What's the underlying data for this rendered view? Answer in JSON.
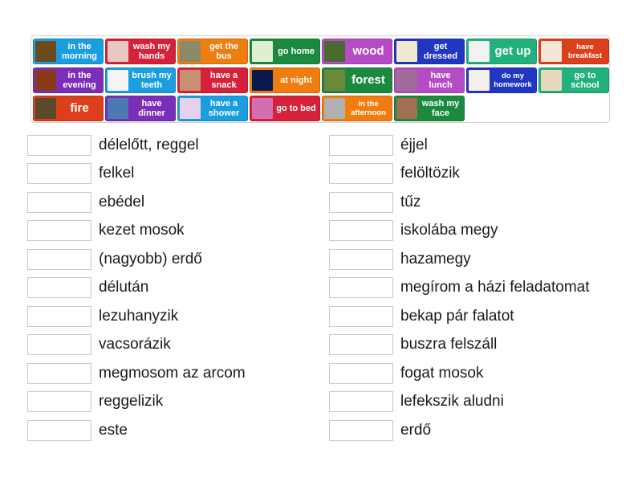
{
  "colors": {
    "blue": "#1b9ee0",
    "red": "#d6213b",
    "orange": "#ef7d10",
    "green": "#1c8a3e",
    "purple": "#7b2fb8",
    "magenta": "#b54cc6",
    "darkblue": "#2137c2",
    "teal": "#22b07c",
    "redorange": "#dc3f1b"
  },
  "tiles": [
    {
      "label": "in the morning",
      "color": "blue",
      "pic": "#6b4a1e"
    },
    {
      "label": "wash my hands",
      "color": "red",
      "pic": "#e8c8c0"
    },
    {
      "label": "get the bus",
      "color": "orange",
      "pic": "#8a8a6a"
    },
    {
      "label": "go home",
      "color": "green",
      "pic": "#dff0d0"
    },
    {
      "label": "wood",
      "color": "magenta",
      "pic": "#4a6a30"
    },
    {
      "label": "get dressed",
      "color": "darkblue",
      "pic": "#f0e8d0"
    },
    {
      "label": "get up",
      "color": "teal",
      "pic": "#f2f2f2"
    },
    {
      "label": "have breakfast",
      "color": "redorange",
      "pic": "#f4e6d8"
    },
    {
      "label": "in the evening",
      "color": "purple",
      "pic": "#8a3a1a"
    },
    {
      "label": "brush my teeth",
      "color": "blue",
      "pic": "#f4f4f4"
    },
    {
      "label": "have a snack",
      "color": "red",
      "pic": "#c89070"
    },
    {
      "label": "at night",
      "color": "orange",
      "pic": "#0a1a50"
    },
    {
      "label": "forest",
      "color": "green",
      "pic": "#6a8a3a"
    },
    {
      "label": "have lunch",
      "color": "magenta",
      "pic": "#a06a9a"
    },
    {
      "label": "do my homework",
      "color": "darkblue",
      "pic": "#f4f0ec"
    },
    {
      "label": "go to school",
      "color": "teal",
      "pic": "#e8d8c0"
    },
    {
      "label": "fire",
      "color": "redorange",
      "pic": "#5a4a2a"
    },
    {
      "label": "have dinner",
      "color": "purple",
      "pic": "#4a7ab0"
    },
    {
      "label": "have a shower",
      "color": "blue",
      "pic": "#e8d0f0"
    },
    {
      "label": "go to bed",
      "color": "red",
      "pic": "#d070b0"
    },
    {
      "label": "in the afternoon",
      "color": "orange",
      "pic": "#b0b0b0"
    },
    {
      "label": "wash my face",
      "color": "green",
      "pic": "#a07050"
    }
  ],
  "left_words": [
    "délelőtt, reggel",
    "felkel",
    "ebédel",
    "kezet mosok",
    "(nagyobb) erdő",
    "délután",
    "lezuhanyzik",
    "vacsorázik",
    "megmosom az arcom",
    "reggelizik",
    "este"
  ],
  "right_words": [
    "éjjel",
    "felöltözik",
    "tűz",
    "iskolába megy",
    "hazamegy",
    "megírom a házi feladatomat",
    "bekap pár falatot",
    "buszra felszáll",
    "fogat mosok",
    "lefekszik aludni",
    "erdő"
  ]
}
